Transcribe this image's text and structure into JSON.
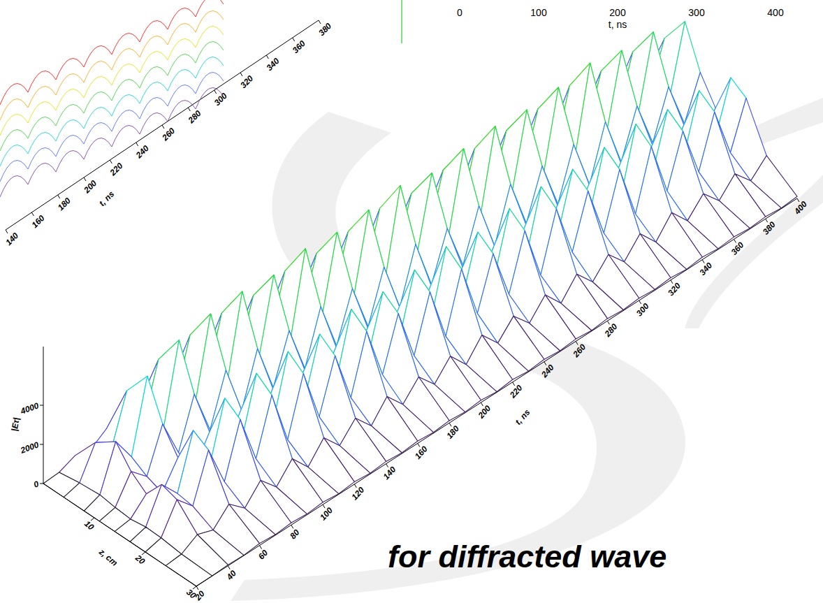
{
  "chart_data": [
    {
      "type": "surface",
      "annotation": "for diffracted wave",
      "xlabel": "t, ns",
      "ylabel": "z, cm",
      "zlabel": "|Eτ|",
      "xlim": [
        20,
        400
      ],
      "ylim": [
        0,
        30
      ],
      "zlim": [
        0,
        7000
      ],
      "xticks": [
        20,
        40,
        60,
        80,
        100,
        120,
        140,
        160,
        180,
        200,
        220,
        240,
        260,
        280,
        300,
        320,
        340,
        360,
        380,
        400
      ],
      "yticks": [
        10,
        20,
        30
      ],
      "zticks": [
        0,
        2000,
        4000
      ],
      "x": [
        20,
        30,
        40,
        50,
        60,
        70,
        80,
        90,
        100,
        110,
        120,
        130,
        140,
        150,
        160,
        170,
        180,
        190,
        200,
        210,
        220,
        230,
        240,
        250,
        260,
        270,
        280,
        290,
        300,
        310,
        320,
        330,
        340,
        350,
        360,
        370,
        380,
        390,
        400
      ],
      "y": [
        0,
        4,
        8,
        11,
        14,
        17,
        20,
        24,
        30
      ],
      "values": [
        [
          0,
          50,
          380,
          180,
          720,
          230,
          840,
          260,
          890,
          240,
          900,
          270,
          870,
          260,
          910,
          280,
          890,
          270,
          900,
          260,
          930,
          280,
          870,
          270,
          900,
          260,
          910,
          280,
          890,
          270,
          900,
          260,
          930,
          280,
          870,
          270,
          860,
          250,
          780
        ],
        [
          0,
          210,
          1750,
          840,
          3360,
          1050,
          3920,
          1190,
          4130,
          1120,
          4200,
          1260,
          4060,
          1190,
          4270,
          1330,
          4130,
          1260,
          4200,
          1190,
          4340,
          1330,
          4060,
          1260,
          4200,
          1190,
          4270,
          1330,
          4130,
          1260,
          4200,
          1190,
          4340,
          1330,
          4060,
          1260,
          3990,
          1190,
          3640
        ],
        [
          0,
          300,
          2500,
          1200,
          4800,
          1500,
          5600,
          1700,
          5900,
          1600,
          6000,
          1800,
          5800,
          1700,
          6100,
          1900,
          5900,
          1800,
          6000,
          1700,
          6200,
          1900,
          5800,
          1800,
          6000,
          1700,
          6100,
          1900,
          5900,
          1800,
          6000,
          1700,
          6200,
          1900,
          5800,
          1800,
          5700,
          1700,
          5200
        ],
        [
          0,
          180,
          1500,
          720,
          2880,
          900,
          3360,
          1020,
          3540,
          960,
          3600,
          1080,
          3480,
          1020,
          3660,
          1140,
          3540,
          1080,
          3600,
          1020,
          3720,
          1140,
          3480,
          1080,
          3600,
          1020,
          3660,
          1140,
          3540,
          1080,
          3600,
          1020,
          3720,
          1140,
          3480,
          1080,
          3420,
          1020,
          3120
        ],
        [
          0,
          110,
          880,
          420,
          1680,
          520,
          1960,
          600,
          2070,
          560,
          2100,
          630,
          2030,
          600,
          2140,
          670,
          2070,
          630,
          2100,
          600,
          2170,
          670,
          2030,
          630,
          2100,
          600,
          2140,
          670,
          2070,
          630,
          2100,
          600,
          2170,
          670,
          2030,
          630,
          2000,
          600,
          1820
        ],
        [
          0,
          230,
          1880,
          900,
          3600,
          1130,
          4200,
          1280,
          4430,
          1200,
          4500,
          1350,
          4350,
          1280,
          4580,
          1430,
          4430,
          1350,
          4500,
          1280,
          4650,
          1430,
          4350,
          1350,
          4500,
          1280,
          4580,
          1430,
          4430,
          1350,
          4500,
          1280,
          4650,
          1430,
          4350,
          1350,
          4280,
          1280,
          3900
        ],
        [
          0,
          200,
          1630,
          780,
          3120,
          980,
          3640,
          1110,
          3840,
          1040,
          3900,
          1170,
          3770,
          1110,
          3970,
          1240,
          3840,
          1170,
          3900,
          1110,
          4030,
          1240,
          3770,
          1170,
          3900,
          1110,
          3970,
          1240,
          3840,
          1170,
          3900,
          1110,
          4030,
          1240,
          3770,
          1170,
          3710,
          1110,
          3380
        ],
        [
          0,
          70,
          550,
          260,
          1060,
          330,
          1230,
          370,
          1300,
          350,
          1320,
          400,
          1280,
          370,
          1340,
          420,
          1300,
          400,
          1320,
          370,
          1360,
          420,
          1280,
          400,
          1320,
          370,
          1340,
          420,
          1300,
          400,
          1320,
          370,
          1360,
          420,
          1280,
          400,
          1250,
          370,
          1140
        ],
        [
          0,
          10,
          50,
          20,
          100,
          30,
          110,
          40,
          120,
          30,
          120,
          40,
          120,
          40,
          120,
          40,
          120,
          40,
          120,
          30,
          130,
          40,
          120,
          40,
          120,
          30,
          120,
          40,
          120,
          40,
          120,
          30,
          130,
          40,
          120,
          40,
          110,
          30,
          100
        ]
      ]
    },
    {
      "type": "surface",
      "xlabel": "t, ns",
      "xticks": [
        140,
        160,
        180,
        200,
        220,
        240,
        260,
        280,
        300,
        320,
        340,
        360,
        380
      ]
    },
    {
      "type": "line",
      "xlabel": "t, ns",
      "xlim": [
        0,
        400
      ],
      "xticks": [
        0,
        100,
        200,
        300,
        400
      ]
    }
  ]
}
